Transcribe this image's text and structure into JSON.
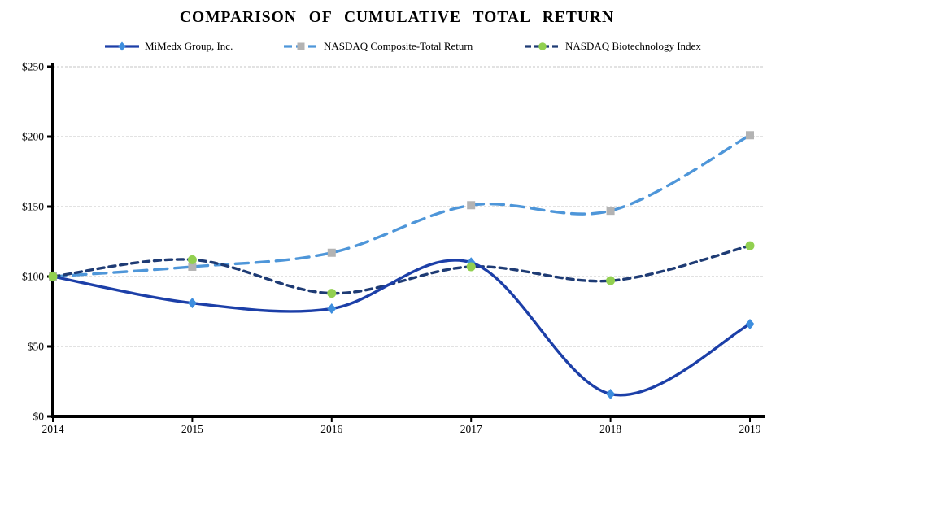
{
  "title": "COMPARISON OF CUMULATIVE TOTAL RETURN",
  "legend": {
    "items": [
      {
        "label": "MiMedx Group, Inc.",
        "line_color": "#1C3FA8",
        "dash": "solid",
        "marker": "diamond",
        "marker_color": "#3E8EDE"
      },
      {
        "label": "NASDAQ Composite-Total Return",
        "line_color": "#4E96D9",
        "dash": "long",
        "marker": "square",
        "marker_color": "#B3B3B3"
      },
      {
        "label": "NASDAQ Biotechnology Index",
        "line_color": "#1E3B74",
        "dash": "short",
        "marker": "circle",
        "marker_color": "#92D050"
      }
    ]
  },
  "chart_data": {
    "type": "line",
    "title": "COMPARISON OF CUMULATIVE TOTAL RETURN",
    "x": [
      "2014",
      "2015",
      "2016",
      "2017",
      "2018",
      "2019"
    ],
    "series": [
      {
        "name": "MiMedx Group, Inc.",
        "values": [
          100,
          81,
          77,
          110,
          16,
          66
        ],
        "color": "#1C3FA8",
        "dash": "solid",
        "marker": "diamond",
        "marker_color": "#3E8EDE"
      },
      {
        "name": "NASDAQ Composite-Total Return",
        "values": [
          100,
          107,
          117,
          151,
          147,
          201
        ],
        "color": "#4E96D9",
        "dash": "long",
        "marker": "square",
        "marker_color": "#B3B3B3"
      },
      {
        "name": "NASDAQ Biotechnology Index",
        "values": [
          100,
          112,
          88,
          107,
          97,
          122
        ],
        "color": "#1E3B74",
        "dash": "short",
        "marker": "circle",
        "marker_color": "#92D050"
      }
    ],
    "ylim": [
      0,
      250
    ],
    "ytick_values": [
      0,
      50,
      100,
      150,
      200,
      250
    ],
    "ytick_labels": [
      "$0",
      "$50",
      "$100",
      "$150",
      "$200",
      "$250"
    ],
    "xtick_labels": [
      "2014",
      "2015",
      "2016",
      "2017",
      "2018",
      "2019"
    ],
    "grid": "horizontal-dashed",
    "grid_color": "#C4C4C4",
    "axis_color": "#000000",
    "line_smoothing": true,
    "legend_position": "top"
  }
}
